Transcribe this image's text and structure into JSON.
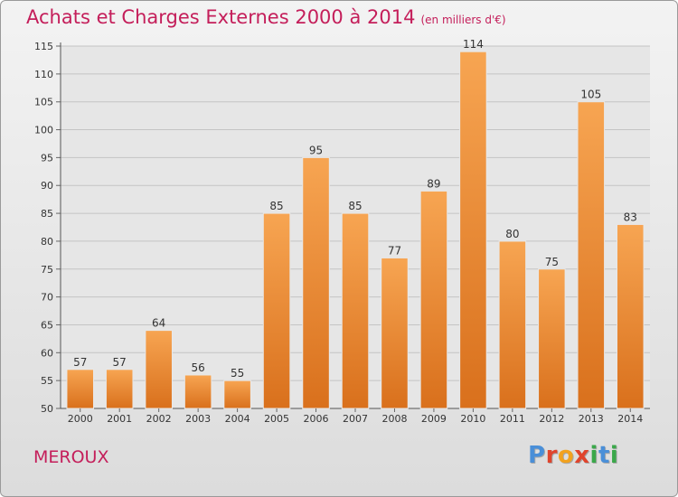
{
  "header": {
    "title": "Achats et Charges Externes 2000 à 2014",
    "unit": "(en milliers d'€)"
  },
  "footer": {
    "commune": "MEROUX",
    "logo_letters": [
      {
        "ch": "P",
        "color": "#4a8fd8"
      },
      {
        "ch": "r",
        "color": "#e0442c"
      },
      {
        "ch": "o",
        "color": "#f2a21f"
      },
      {
        "ch": "x",
        "color": "#e0442c"
      },
      {
        "ch": "i",
        "color": "#3aa84a"
      },
      {
        "ch": "t",
        "color": "#4a8fd8"
      },
      {
        "ch": "i",
        "color": "#3aa84a"
      }
    ]
  },
  "chart_data": {
    "type": "bar",
    "title": "Achats et Charges Externes 2000 à 2014",
    "subtitle": "(en milliers d'€)",
    "xlabel": "",
    "ylabel": "",
    "ylim": [
      50,
      115
    ],
    "yticks": [
      50,
      55,
      60,
      65,
      70,
      75,
      80,
      85,
      90,
      95,
      100,
      105,
      110,
      115
    ],
    "grid": true,
    "categories": [
      "2000",
      "2001",
      "2002",
      "2003",
      "2004",
      "2005",
      "2006",
      "2007",
      "2008",
      "2009",
      "2010",
      "2011",
      "2012",
      "2013",
      "2014"
    ],
    "values": [
      57,
      57,
      64,
      56,
      55,
      85,
      95,
      85,
      77,
      89,
      114,
      80,
      75,
      105,
      83
    ],
    "bar_color_top": "#f7a552",
    "bar_color_bottom": "#d9701c",
    "text_color": "#c41e5a"
  }
}
